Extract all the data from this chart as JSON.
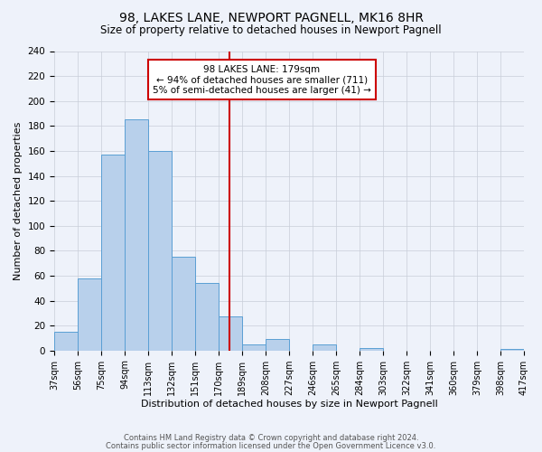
{
  "title": "98, LAKES LANE, NEWPORT PAGNELL, MK16 8HR",
  "subtitle": "Size of property relative to detached houses in Newport Pagnell",
  "xlabel": "Distribution of detached houses by size in Newport Pagnell",
  "ylabel": "Number of detached properties",
  "bar_color": "#b8d0eb",
  "bar_edge_color": "#5a9fd4",
  "background_color": "#eef2fa",
  "grid_color": "#c8cdd8",
  "bin_edges": [
    37,
    56,
    75,
    94,
    113,
    132,
    151,
    170,
    189,
    208,
    227,
    246,
    265,
    284,
    303,
    322,
    341,
    360,
    379,
    398,
    417
  ],
  "bin_labels": [
    "37sqm",
    "56sqm",
    "75sqm",
    "94sqm",
    "113sqm",
    "132sqm",
    "151sqm",
    "170sqm",
    "189sqm",
    "208sqm",
    "227sqm",
    "246sqm",
    "265sqm",
    "284sqm",
    "303sqm",
    "322sqm",
    "341sqm",
    "360sqm",
    "379sqm",
    "398sqm",
    "417sqm"
  ],
  "counts": [
    15,
    58,
    157,
    185,
    160,
    75,
    54,
    27,
    5,
    9,
    0,
    5,
    0,
    2,
    0,
    0,
    0,
    0,
    0,
    1
  ],
  "property_value": 179,
  "vline_color": "#cc0000",
  "annotation_title": "98 LAKES LANE: 179sqm",
  "annotation_line1": "← 94% of detached houses are smaller (711)",
  "annotation_line2": "5% of semi-detached houses are larger (41) →",
  "annotation_box_color": "#ffffff",
  "annotation_box_edge_color": "#cc0000",
  "ylim": [
    0,
    240
  ],
  "yticks": [
    0,
    20,
    40,
    60,
    80,
    100,
    120,
    140,
    160,
    180,
    200,
    220,
    240
  ],
  "footer_line1": "Contains HM Land Registry data © Crown copyright and database right 2024.",
  "footer_line2": "Contains public sector information licensed under the Open Government Licence v3.0."
}
